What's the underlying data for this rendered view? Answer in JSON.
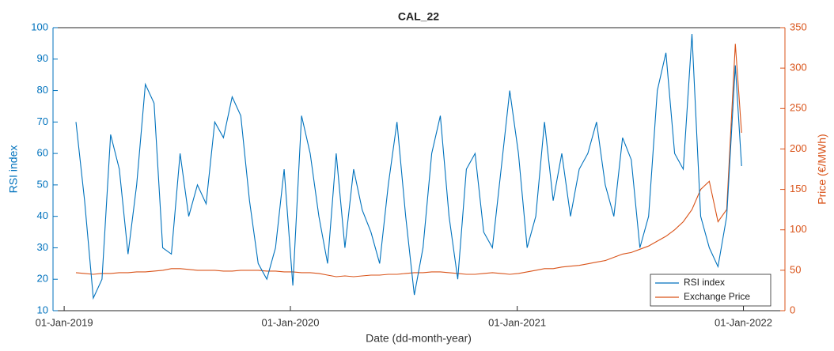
{
  "chart_data": {
    "type": "line",
    "title": "CAL_22",
    "x_label": "Date (dd-month-year)",
    "y_label": "RSI index",
    "y2_label": "Price (€/MWh)",
    "x": [
      "2019-01-20",
      "2019-02-03",
      "2019-02-17",
      "2019-03-03",
      "2019-03-17",
      "2019-03-31",
      "2019-04-14",
      "2019-04-28",
      "2019-05-12",
      "2019-05-26",
      "2019-06-09",
      "2019-06-23",
      "2019-07-07",
      "2019-07-21",
      "2019-08-04",
      "2019-08-18",
      "2019-09-01",
      "2019-09-15",
      "2019-09-29",
      "2019-10-13",
      "2019-10-27",
      "2019-11-10",
      "2019-11-24",
      "2019-12-08",
      "2019-12-22",
      "2020-01-05",
      "2020-01-19",
      "2020-02-02",
      "2020-02-16",
      "2020-03-01",
      "2020-03-15",
      "2020-03-29",
      "2020-04-12",
      "2020-04-26",
      "2020-05-10",
      "2020-05-24",
      "2020-06-07",
      "2020-06-21",
      "2020-07-05",
      "2020-07-19",
      "2020-08-02",
      "2020-08-16",
      "2020-08-30",
      "2020-09-13",
      "2020-09-27",
      "2020-10-11",
      "2020-10-25",
      "2020-11-08",
      "2020-11-22",
      "2020-12-06",
      "2020-12-20",
      "2021-01-03",
      "2021-01-17",
      "2021-01-31",
      "2021-02-14",
      "2021-02-28",
      "2021-03-14",
      "2021-03-28",
      "2021-04-11",
      "2021-04-25",
      "2021-05-09",
      "2021-05-23",
      "2021-06-06",
      "2021-06-20",
      "2021-07-04",
      "2021-07-18",
      "2021-08-01",
      "2021-08-15",
      "2021-08-29",
      "2021-09-12",
      "2021-09-26",
      "2021-10-10",
      "2021-10-24",
      "2021-11-07",
      "2021-11-21",
      "2021-12-05",
      "2021-12-19",
      "2021-12-29"
    ],
    "series": [
      {
        "name": "RSI index",
        "color": "#0072bd",
        "values": [
          70,
          45,
          14,
          20,
          66,
          55,
          28,
          50,
          82,
          76,
          30,
          28,
          60,
          40,
          50,
          44,
          70,
          65,
          78,
          72,
          45,
          25,
          20,
          30,
          55,
          18,
          72,
          60,
          40,
          25,
          60,
          30,
          55,
          42,
          35,
          25,
          50,
          70,
          40,
          15,
          30,
          60,
          72,
          40,
          20,
          55,
          60,
          35,
          30,
          55,
          80,
          60,
          30,
          40,
          70,
          45,
          60,
          40,
          55,
          60,
          70,
          50,
          40,
          65,
          58,
          30,
          40,
          80,
          92,
          60,
          55,
          98,
          40,
          30,
          24,
          40,
          88,
          56
        ]
      },
      {
        "name": "Exchange Price",
        "color": "#d95319",
        "axis": "y2",
        "values": [
          47,
          46,
          45,
          46,
          46,
          47,
          47,
          48,
          48,
          49,
          50,
          52,
          52,
          51,
          50,
          50,
          50,
          49,
          49,
          50,
          50,
          50,
          49,
          49,
          48,
          48,
          47,
          47,
          46,
          44,
          42,
          43,
          42,
          43,
          44,
          44,
          45,
          45,
          46,
          47,
          47,
          48,
          48,
          47,
          46,
          45,
          45,
          46,
          47,
          46,
          45,
          46,
          48,
          50,
          52,
          52,
          54,
          55,
          56,
          58,
          60,
          62,
          66,
          70,
          72,
          76,
          80,
          86,
          92,
          100,
          110,
          125,
          150,
          160,
          110,
          125,
          330,
          220
        ]
      }
    ],
    "xlim": [
      "2018-12-14",
      "2022-03-09"
    ],
    "xticks": [
      {
        "value": "2019-01-01",
        "label": "01-Jan-2019"
      },
      {
        "value": "2020-01-01",
        "label": "01-Jan-2020"
      },
      {
        "value": "2021-01-01",
        "label": "01-Jan-2021"
      },
      {
        "value": "2022-01-01",
        "label": "01-Jan-2022"
      }
    ],
    "ylim": [
      10,
      100
    ],
    "yticks": [
      10,
      20,
      30,
      40,
      50,
      60,
      70,
      80,
      90,
      100
    ],
    "y2lim": [
      0,
      350
    ],
    "y2ticks": [
      0,
      50,
      100,
      150,
      200,
      250,
      300,
      350
    ],
    "legend": "lower right"
  }
}
